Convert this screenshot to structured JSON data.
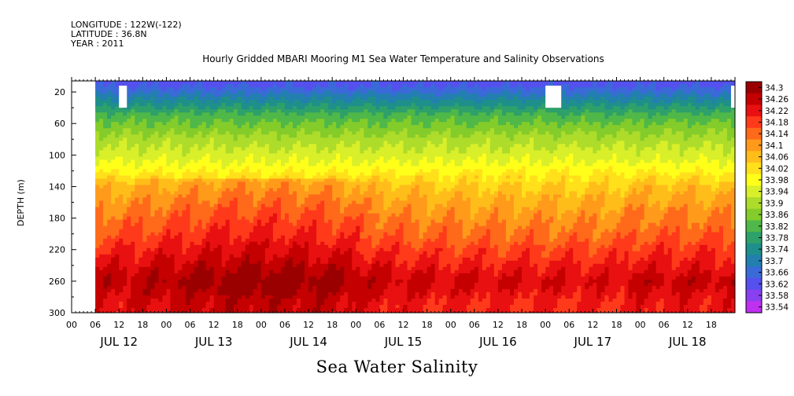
{
  "header": {
    "longitude": "LONGITUDE : 122W(-122)",
    "latitude": "LATITUDE : 36.8N",
    "year": "YEAR : 2011"
  },
  "chart_data": {
    "type": "heatmap",
    "title": "Hourly Gridded MBARI Mooring M1 Sea Water Temperature and Salinity Observations",
    "bottom_title": "Sea Water Salinity",
    "ylabel": "DEPTH (m)",
    "xlabel": "",
    "y_axis": {
      "inverted": true,
      "ylim": [
        300,
        6
      ],
      "ticks": [
        20,
        60,
        100,
        140,
        180,
        220,
        260,
        300
      ]
    },
    "x_axis": {
      "hour_ticks": [
        "00",
        "06",
        "12",
        "18",
        "00",
        "06",
        "12",
        "18",
        "00",
        "06",
        "12",
        "18",
        "00",
        "06",
        "12",
        "18",
        "00",
        "06",
        "12",
        "18",
        "00",
        "06",
        "12",
        "18",
        "00",
        "06",
        "12",
        "18"
      ],
      "day_labels": [
        "JUL 12",
        "JUL 13",
        "JUL 14",
        "JUL 15",
        "JUL 16",
        "JUL 17",
        "JUL 18"
      ]
    },
    "data_start": "JUL 12 06",
    "data_end": "JUL 18 23",
    "missing_blocks": [
      {
        "start": "JUL 12 12",
        "end": "JUL 12 14",
        "depth_top": 12,
        "depth_bottom": 40
      },
      {
        "start": "JUL 17 00",
        "end": "JUL 17 04",
        "depth_top": 12,
        "depth_bottom": 40
      },
      {
        "start": "JUL 18 23",
        "end": "JUL 19 00",
        "depth_top": 12,
        "depth_bottom": 40
      }
    ],
    "depth_profile_mean": [
      {
        "depth": 10,
        "salinity": 33.64
      },
      {
        "depth": 30,
        "salinity": 33.73
      },
      {
        "depth": 50,
        "salinity": 33.82
      },
      {
        "depth": 80,
        "salinity": 33.9
      },
      {
        "depth": 110,
        "salinity": 33.96
      },
      {
        "depth": 140,
        "salinity": 34.05
      },
      {
        "depth": 170,
        "salinity": 34.1
      },
      {
        "depth": 200,
        "salinity": 34.14
      },
      {
        "depth": 230,
        "salinity": 34.19
      },
      {
        "depth": 260,
        "salinity": 34.24
      },
      {
        "depth": 290,
        "salinity": 34.2
      }
    ],
    "colorbar": {
      "min": 33.54,
      "max": 34.3,
      "labels": [
        "34.3",
        "34.26",
        "34.22",
        "34.18",
        "34.14",
        "34.1",
        "34.06",
        "34.02",
        "33.98",
        "33.94",
        "33.9",
        "33.86",
        "33.82",
        "33.78",
        "33.74",
        "33.7",
        "33.66",
        "33.62",
        "33.58",
        "33.54"
      ],
      "colors": [
        "#9b0000",
        "#c40000",
        "#e81010",
        "#ff3a1a",
        "#ff6a1a",
        "#ff9a1a",
        "#ffbd1a",
        "#ffe01a",
        "#ffff1a",
        "#d8ef2a",
        "#aedc2a",
        "#84cc2a",
        "#4fb848",
        "#2ea06a",
        "#1e8f8a",
        "#237fb0",
        "#3a6ad8",
        "#5550ee",
        "#8840f0",
        "#c030f0"
      ]
    }
  }
}
